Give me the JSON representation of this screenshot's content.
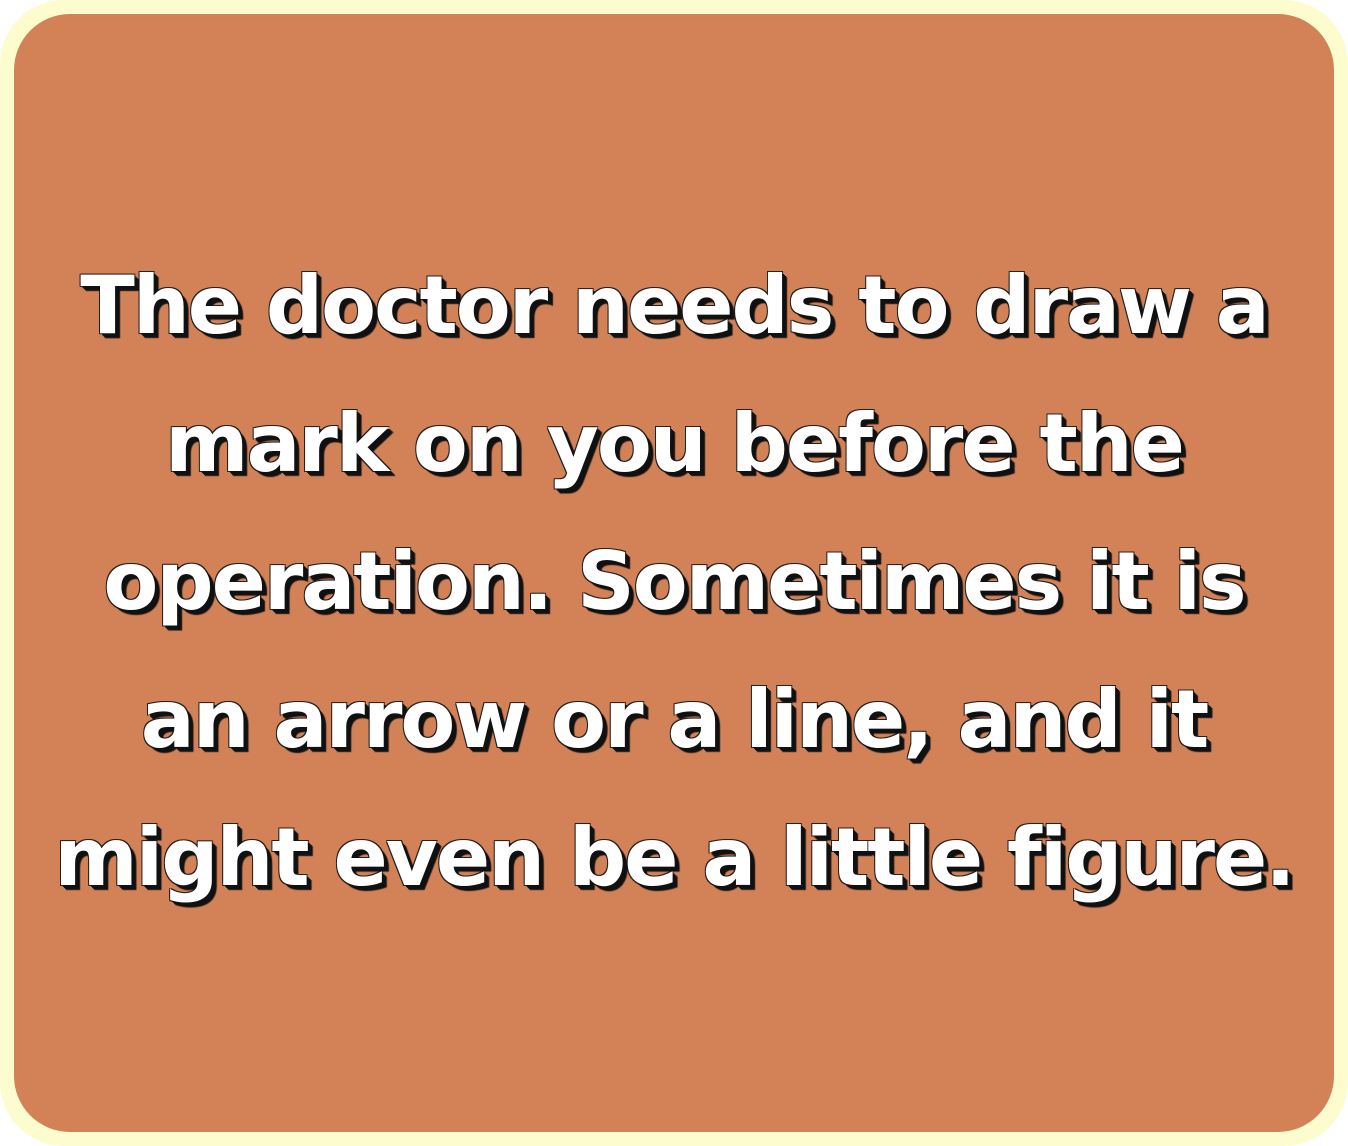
{
  "card": {
    "lines": [
      "The doctor needs to draw a",
      "mark on you before the",
      "operation. Sometimes it is",
      "an arrow or a line, and it",
      "might even be a little figure."
    ]
  },
  "colors": {
    "card_background": "#d38157",
    "frame_border": "#fdfccf",
    "text": "#ffffff",
    "text_shadow": "#111111"
  }
}
